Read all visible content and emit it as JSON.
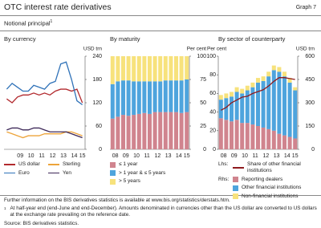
{
  "header": {
    "title": "OTC interest rate derivatives",
    "graph": "Graph 7",
    "subtitle": "Notional principal",
    "subtitle_note": "1"
  },
  "chart_data": [
    {
      "type": "line",
      "title": "By currency",
      "y_unit": "USD trn",
      "y_side": "right",
      "categories": [
        null,
        null,
        "09",
        null,
        "10",
        null,
        "11",
        null,
        "12",
        null,
        "13",
        null,
        "14",
        null,
        "15"
      ],
      "ylim": [
        0,
        240
      ],
      "yticks": [
        0,
        60,
        120,
        180,
        240
      ],
      "legend_columns": 2,
      "series": [
        {
          "name": "US dollar",
          "color": "#b22a2e",
          "values": [
            130,
            120,
            135,
            140,
            140,
            145,
            140,
            145,
            140,
            150,
            155,
            155,
            150,
            155,
            120
          ]
        },
        {
          "name": "Sterling",
          "color": "#eda43a",
          "values": [
            45,
            40,
            35,
            30,
            35,
            35,
            35,
            40,
            40,
            40,
            40,
            45,
            45,
            40,
            35
          ]
        },
        {
          "name": "Euro",
          "color": "#2f72b8",
          "values": [
            155,
            170,
            160,
            150,
            150,
            165,
            160,
            155,
            170,
            175,
            220,
            225,
            180,
            125,
            115
          ]
        },
        {
          "name": "Yen",
          "color": "#3d2858",
          "values": [
            50,
            55,
            55,
            50,
            50,
            55,
            55,
            50,
            45,
            45,
            45,
            45,
            40,
            35,
            30
          ]
        }
      ]
    },
    {
      "type": "bar",
      "stacked": true,
      "title": "By maturity",
      "y_unit": "Per cent",
      "y_side": "right",
      "categories": [
        "08",
        null,
        "09",
        null,
        "10",
        null,
        "11",
        null,
        "12",
        null,
        "13",
        null,
        "14",
        null,
        "15"
      ],
      "ylim": [
        0,
        100
      ],
      "yticks": [
        0,
        25,
        50,
        75,
        100
      ],
      "legend_columns": 1,
      "series": [
        {
          "name": "≤ 1 year",
          "color": "#d0848e",
          "values": [
            33,
            35,
            37,
            36,
            37,
            38,
            39,
            38,
            40,
            40,
            40,
            40,
            40,
            39,
            40
          ]
        },
        {
          "name": "> 1 year & ≤ 5 years",
          "color": "#4ea4dd",
          "values": [
            37,
            38,
            37,
            38,
            36,
            35,
            34,
            35,
            33,
            33,
            34,
            34,
            34,
            35,
            35
          ]
        },
        {
          "name": "> 5 years",
          "color": "#f7e27c",
          "values": [
            30,
            27,
            26,
            26,
            27,
            27,
            27,
            27,
            27,
            27,
            26,
            26,
            26,
            26,
            25
          ]
        }
      ]
    },
    {
      "type": "bar",
      "stacked": true,
      "title": "By sector of counterparty",
      "y_unit": "Per cent",
      "y_side": "left",
      "y2_unit": "USD trn",
      "categories": [
        "08",
        null,
        "09",
        null,
        "10",
        null,
        "11",
        null,
        "12",
        null,
        "13",
        null,
        "14",
        null,
        "15"
      ],
      "ylim": [
        0,
        100
      ],
      "yticks": [
        0,
        20,
        40,
        60,
        80,
        100
      ],
      "y2lim": [
        0,
        600
      ],
      "y2ticks": [
        0,
        150,
        300,
        450,
        600
      ],
      "lhs_label": "Lhs:",
      "rhs_label": "Rhs:",
      "series": [
        {
          "name": "Share of other financial institutions",
          "type": "line",
          "color": "#8e1b1f",
          "values": [
            42,
            45,
            50,
            53,
            56,
            57,
            60,
            62,
            64,
            68,
            73,
            77,
            77,
            76,
            75
          ]
        },
        {
          "name": "Reporting dealers",
          "axis": "y2",
          "color": "#d0848e",
          "values": [
            200,
            190,
            180,
            190,
            170,
            170,
            160,
            150,
            140,
            130,
            120,
            100,
            90,
            80,
            70
          ]
        },
        {
          "name": "Other financial institutions",
          "axis": "y2",
          "color": "#4ea4dd",
          "values": [
            120,
            140,
            160,
            180,
            190,
            210,
            240,
            280,
            300,
            340,
            390,
            400,
            380,
            350,
            310
          ]
        },
        {
          "name": "Non-financial institutions",
          "axis": "y2",
          "color": "#f7e27c",
          "values": [
            30,
            30,
            30,
            30,
            30,
            30,
            30,
            30,
            30,
            30,
            30,
            30,
            30,
            30,
            20
          ]
        }
      ]
    }
  ],
  "footer": {
    "note": "Further information on the BIS derivatives statistics is available at www.bis.org/statistics/derstats.htm.",
    "footnote_marker": "1",
    "footnote": "At half-year end (end-June and end-December). Amounts denominated in currencies other than the US dollar are converted to US dollars at the exchange rate prevailing on the reference date.",
    "source": "Source: BIS derivatives statistics."
  }
}
